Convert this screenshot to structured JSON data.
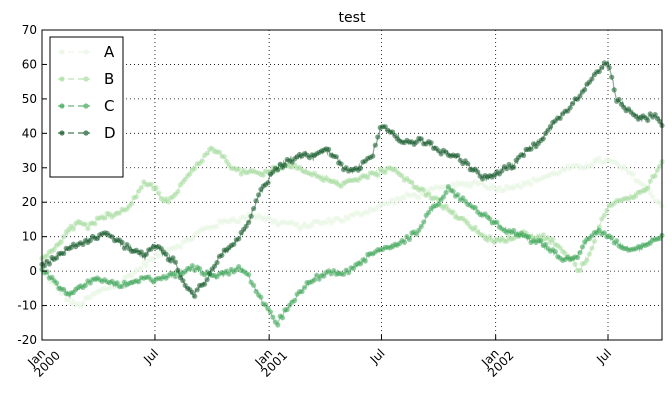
{
  "chart_data": {
    "type": "line",
    "title": "test",
    "xlabel": "",
    "ylabel": "",
    "ylim": [
      -20,
      70
    ],
    "yticks": [
      -20,
      -10,
      0,
      10,
      20,
      30,
      40,
      50,
      60,
      70
    ],
    "xlim": [
      "2000-01-01",
      "2002-09-26"
    ],
    "xticks": [
      {
        "date": "2000-01-01",
        "label": [
          "Jan",
          "2000"
        ]
      },
      {
        "date": "2000-07-01",
        "label": [
          "Jul"
        ]
      },
      {
        "date": "2001-01-01",
        "label": [
          "Jan",
          "2001"
        ]
      },
      {
        "date": "2001-07-01",
        "label": [
          "Jul"
        ]
      },
      {
        "date": "2002-01-01",
        "label": [
          "Jan",
          "2002"
        ]
      },
      {
        "date": "2002-07-01",
        "label": [
          "Jul"
        ]
      }
    ],
    "grid": true,
    "legend_position": "top-left",
    "marker": "circle",
    "x": [
      "2000-01-01",
      "2000-01-15",
      "2000-02-01",
      "2000-02-15",
      "2000-03-01",
      "2000-03-15",
      "2000-04-01",
      "2000-04-15",
      "2000-05-01",
      "2000-05-15",
      "2000-06-01",
      "2000-06-15",
      "2000-07-01",
      "2000-07-15",
      "2000-08-01",
      "2000-08-15",
      "2000-09-01",
      "2000-09-15",
      "2000-10-01",
      "2000-10-15",
      "2000-11-01",
      "2000-11-15",
      "2000-12-01",
      "2000-12-15",
      "2001-01-01",
      "2001-01-15",
      "2001-02-01",
      "2001-02-15",
      "2001-03-01",
      "2001-03-15",
      "2001-04-01",
      "2001-04-15",
      "2001-05-01",
      "2001-05-15",
      "2001-06-01",
      "2001-06-15",
      "2001-07-01",
      "2001-07-15",
      "2001-08-01",
      "2001-08-15",
      "2001-09-01",
      "2001-09-15",
      "2001-10-01",
      "2001-10-15",
      "2001-11-01",
      "2001-11-15",
      "2001-12-01",
      "2001-12-15",
      "2002-01-01",
      "2002-01-15",
      "2002-02-01",
      "2002-02-15",
      "2002-03-01",
      "2002-03-15",
      "2002-04-01",
      "2002-04-15",
      "2002-05-01",
      "2002-05-15",
      "2002-06-01",
      "2002-06-15",
      "2002-07-01",
      "2002-07-15",
      "2002-08-01",
      "2002-08-15",
      "2002-09-01",
      "2002-09-15",
      "2002-09-26"
    ],
    "series": [
      {
        "name": "A",
        "color": "#e8f5e4",
        "values": [
          0,
          -3,
          -6,
          -9,
          -10,
          -8,
          -6,
          -5,
          -4,
          -2,
          0,
          2,
          4,
          6,
          7,
          8,
          10,
          12,
          13,
          14,
          15,
          15,
          16,
          16,
          15,
          14,
          14,
          13,
          13,
          14,
          14,
          15,
          15,
          16,
          17,
          18,
          19,
          20,
          21,
          22,
          22,
          23,
          24,
          24,
          25,
          25,
          26,
          25,
          24,
          24,
          25,
          25,
          26,
          27,
          28,
          29,
          30,
          30,
          31,
          32,
          32,
          31,
          29,
          27,
          24,
          21,
          19
        ]
      },
      {
        "name": "B",
        "color": "#a8dca0",
        "values": [
          3,
          6,
          9,
          12,
          14,
          13,
          15,
          16,
          17,
          18,
          22,
          26,
          24,
          20,
          22,
          26,
          30,
          32,
          36,
          34,
          30,
          29,
          29,
          28,
          29,
          30,
          31,
          30,
          29,
          28,
          27,
          26,
          25,
          26,
          27,
          28,
          29,
          30,
          28,
          26,
          24,
          22,
          20,
          18,
          16,
          14,
          12,
          10,
          9,
          9,
          10,
          11,
          10,
          10,
          9,
          7,
          4,
          0,
          5,
          12,
          19,
          20,
          21,
          22,
          24,
          28,
          31
        ]
      },
      {
        "name": "C",
        "color": "#3fa65a",
        "values": [
          1,
          -2,
          -5,
          -7,
          -5,
          -3,
          -2,
          -3,
          -4,
          -4,
          -3,
          -2,
          -3,
          -2,
          -1,
          0,
          1,
          0,
          -2,
          -1,
          0,
          1,
          -2,
          -7,
          -12,
          -15,
          -10,
          -7,
          -4,
          -2,
          -1,
          0,
          -1,
          1,
          3,
          5,
          6,
          7,
          8,
          10,
          12,
          17,
          20,
          24,
          22,
          20,
          18,
          16,
          14,
          12,
          11,
          10,
          9,
          8,
          6,
          4,
          3,
          5,
          10,
          12,
          10,
          8,
          7,
          6,
          8,
          10,
          10
        ]
      },
      {
        "name": "D",
        "color": "#145a2a",
        "values": [
          2,
          3,
          5,
          7,
          8,
          9,
          10,
          11,
          9,
          7,
          6,
          4,
          8,
          5,
          3,
          -3,
          -7,
          -4,
          0,
          5,
          7,
          10,
          15,
          22,
          27,
          30,
          32,
          33,
          34,
          33,
          35,
          34,
          30,
          29,
          31,
          33,
          42,
          41,
          38,
          37,
          38,
          37,
          35,
          34,
          33,
          31,
          29,
          27,
          28,
          30,
          31,
          34,
          36,
          38,
          42,
          45,
          48,
          51,
          55,
          58,
          61,
          50,
          47,
          45,
          44,
          46,
          42
        ]
      }
    ]
  }
}
